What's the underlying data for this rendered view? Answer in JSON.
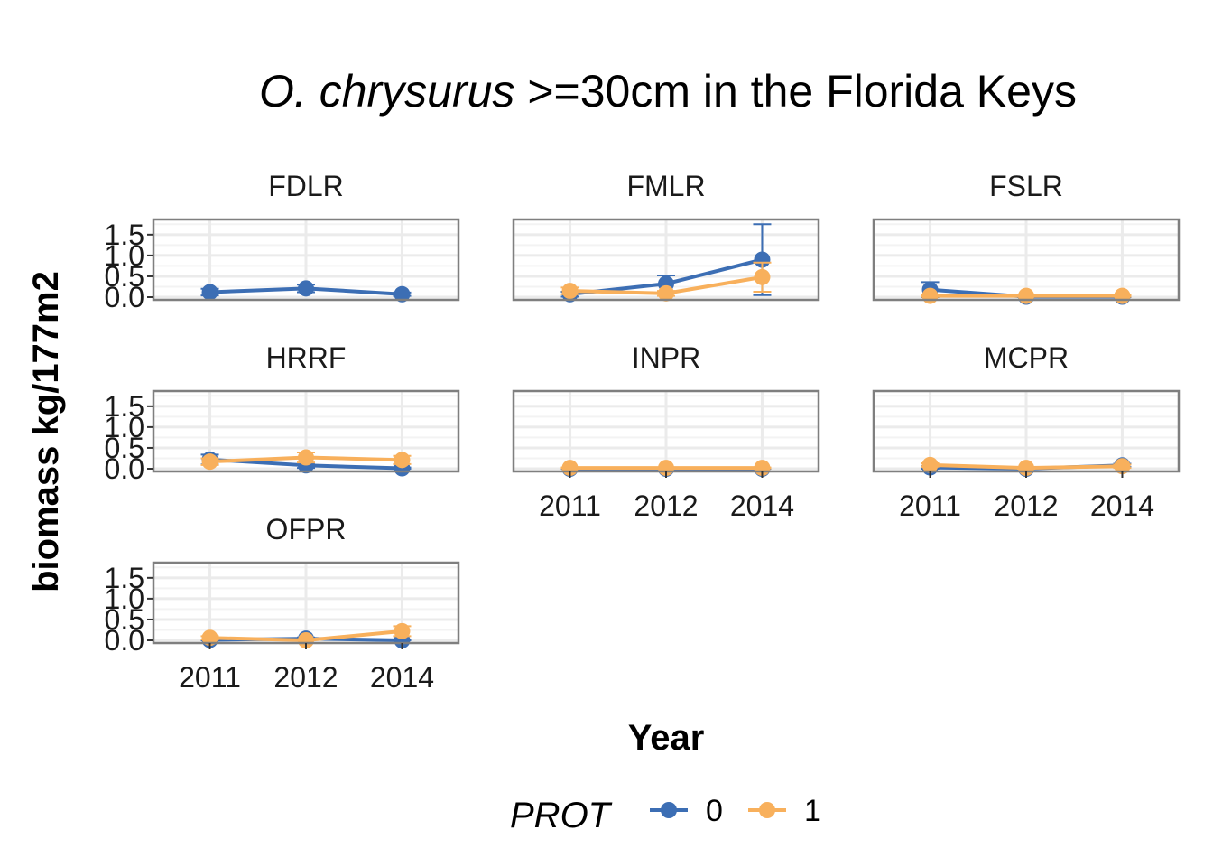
{
  "title_italic": "O. chrysurus",
  "title_rest": " >=30cm in the Florida Keys",
  "chart_data": {
    "type": "line",
    "xlabel": "Year",
    "ylabel": "biomass kg/177m2",
    "categories": [
      "2011",
      "2012",
      "2014"
    ],
    "yticks": [
      "0.0",
      "0.5",
      "1.0",
      "1.5"
    ],
    "ylim": [
      0,
      1.8
    ],
    "grid": true,
    "legend": {
      "title": "PROT",
      "position": "bottom",
      "entries": [
        {
          "label": "0",
          "color": "#3c6eb4"
        },
        {
          "label": "1",
          "color": "#f8b05c"
        }
      ]
    },
    "panels": [
      {
        "name": "FDLR",
        "series": [
          {
            "group": "0",
            "values": [
              0.12,
              0.21,
              0.07
            ],
            "err": [
              0.08,
              0.09,
              0.04
            ]
          }
        ]
      },
      {
        "name": "FMLR",
        "series": [
          {
            "group": "0",
            "values": [
              0.07,
              0.32,
              0.9
            ],
            "err": [
              0.06,
              0.2,
              0.85
            ]
          },
          {
            "group": "1",
            "values": [
              0.15,
              0.09,
              0.48
            ],
            "err": [
              0.08,
              0.06,
              0.35
            ]
          }
        ]
      },
      {
        "name": "FSLR",
        "series": [
          {
            "group": "0",
            "values": [
              0.18,
              0.01,
              0.01
            ],
            "err": [
              0.18,
              0.01,
              0.01
            ]
          },
          {
            "group": "1",
            "values": [
              0.03,
              0.03,
              0.03
            ],
            "err": [
              0.02,
              0.02,
              0.02
            ]
          }
        ]
      },
      {
        "name": "HRRF",
        "series": [
          {
            "group": "0",
            "values": [
              0.22,
              0.08,
              0.01
            ],
            "err": [
              0.12,
              0.06,
              0.02
            ]
          },
          {
            "group": "1",
            "values": [
              0.17,
              0.27,
              0.21
            ],
            "err": [
              0.08,
              0.12,
              0.1
            ]
          }
        ]
      },
      {
        "name": "INPR",
        "series": [
          {
            "group": "0",
            "values": [
              0.0,
              0.0,
              0.0
            ],
            "err": [
              0.01,
              0.01,
              0.01
            ]
          },
          {
            "group": "1",
            "values": [
              0.02,
              0.02,
              0.02
            ],
            "err": [
              0.01,
              0.01,
              0.01
            ]
          }
        ]
      },
      {
        "name": "MCPR",
        "series": [
          {
            "group": "0",
            "values": [
              0.03,
              0.0,
              0.08
            ],
            "err": [
              0.03,
              0.01,
              0.04
            ]
          },
          {
            "group": "1",
            "values": [
              0.09,
              0.02,
              0.06
            ],
            "err": [
              0.04,
              0.02,
              0.04
            ]
          }
        ]
      },
      {
        "name": "OFPR",
        "series": [
          {
            "group": "0",
            "values": [
              0.01,
              0.04,
              0.0
            ],
            "err": [
              0.01,
              0.03,
              0.01
            ]
          },
          {
            "group": "1",
            "values": [
              0.06,
              0.0,
              0.22
            ],
            "err": [
              0.04,
              0.01,
              0.12
            ]
          }
        ]
      }
    ]
  }
}
